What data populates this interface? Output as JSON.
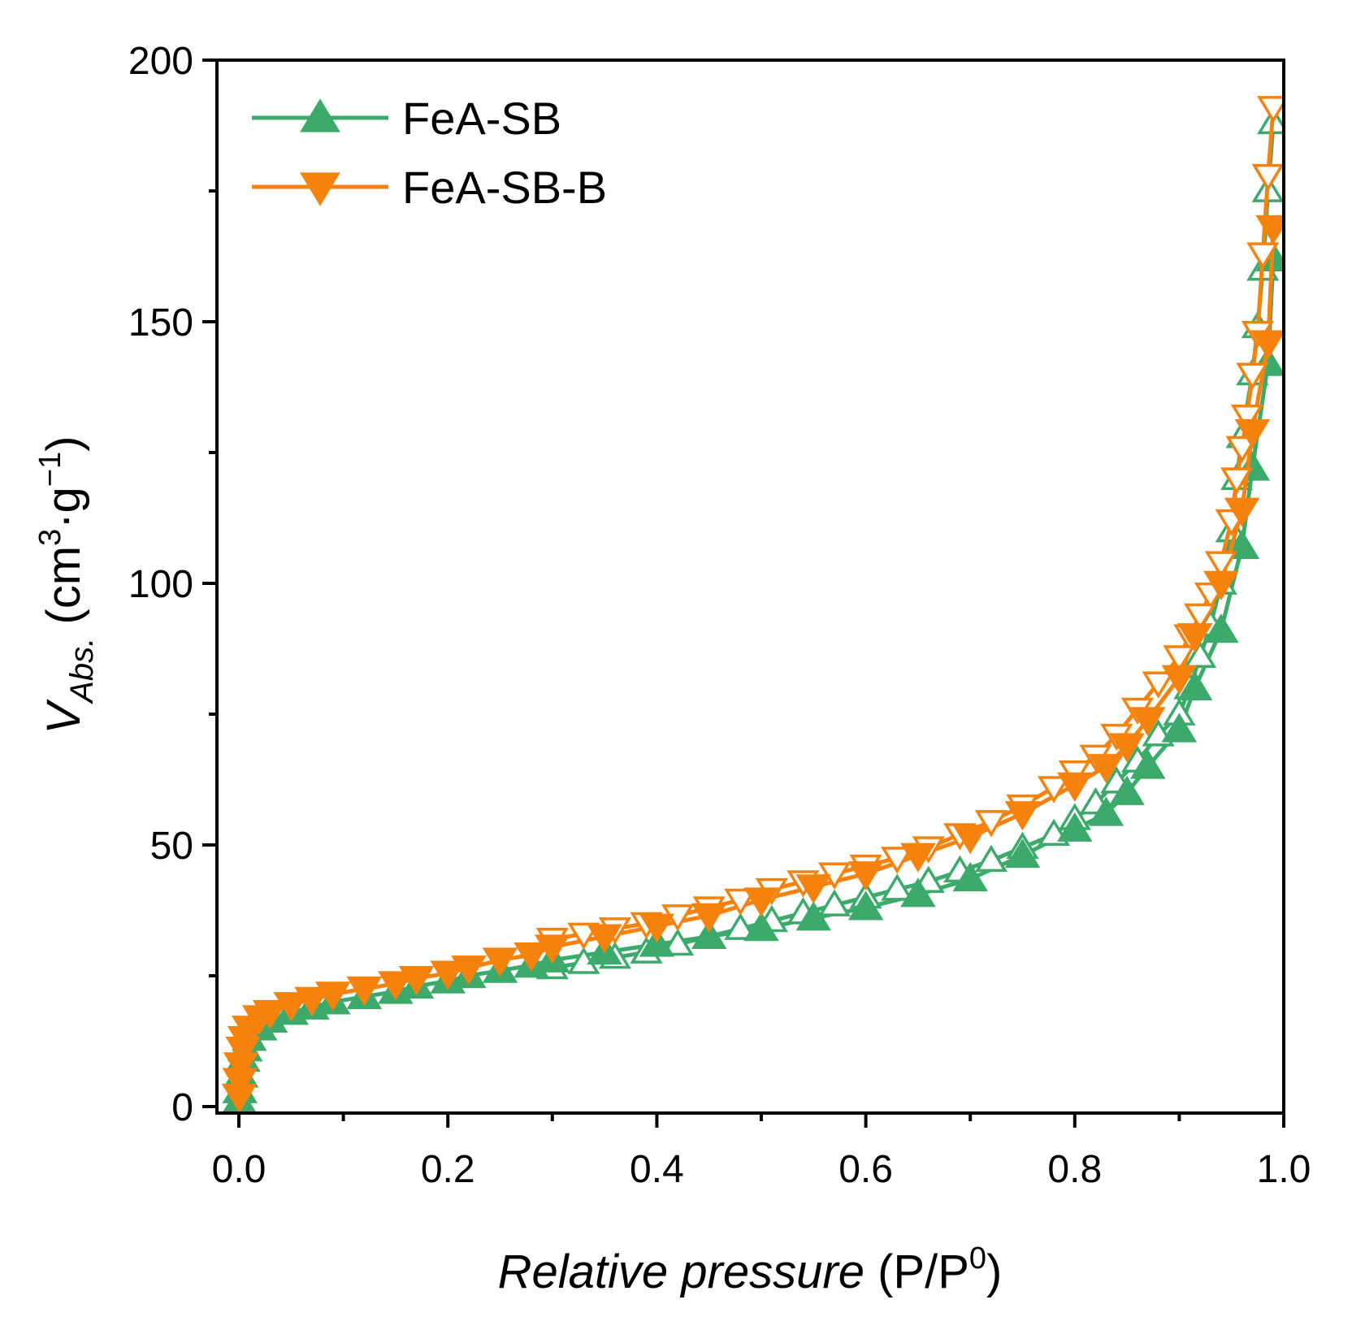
{
  "chart_data": {
    "type": "line",
    "title": "",
    "xlabel": {
      "italic": "Relative pressure",
      "unit_prefix": "(P/P",
      "unit_sup": "0",
      "unit_suffix": ")"
    },
    "ylabel": {
      "main": "V",
      "sub": "Abs.",
      "unit_prefix": "(cm",
      "sup1": "3",
      "unit_mid": "·g",
      "sup2": "−1",
      "unit_suffix": ")"
    },
    "xlim": [
      0.0,
      1.0
    ],
    "ylim": [
      0,
      200
    ],
    "xticks": [
      0.0,
      0.2,
      0.4,
      0.6,
      0.8,
      1.0
    ],
    "xtick_labels": [
      "0.0",
      "0.2",
      "0.4",
      "0.6",
      "0.8",
      "1.0"
    ],
    "yticks": [
      0,
      50,
      100,
      150,
      200
    ],
    "ytick_labels": [
      "0",
      "50",
      "100",
      "150",
      "200"
    ],
    "grid": false,
    "legend_position": "top-left",
    "series": [
      {
        "name": "FeA-SB",
        "color": "#3BAA6B",
        "marker": "triangle-up",
        "adsorption": {
          "x": [
            0.0005,
            0.001,
            0.002,
            0.004,
            0.006,
            0.01,
            0.02,
            0.03,
            0.05,
            0.07,
            0.09,
            0.12,
            0.15,
            0.17,
            0.2,
            0.22,
            0.25,
            0.28,
            0.3,
            0.35,
            0.4,
            0.45,
            0.5,
            0.55,
            0.6,
            0.65,
            0.7,
            0.75,
            0.8,
            0.83,
            0.85,
            0.87,
            0.9,
            0.915,
            0.94,
            0.96,
            0.97,
            0.985,
            0.99
          ],
          "y": [
            1,
            3,
            6,
            9,
            11,
            13,
            15,
            16.5,
            18,
            19,
            20,
            21,
            22,
            23,
            24,
            25,
            26,
            27,
            28,
            29.5,
            31,
            32.5,
            34,
            36,
            38,
            40.5,
            43.5,
            48,
            53,
            56,
            60,
            65,
            72,
            80,
            91,
            107,
            122,
            142,
            162
          ]
        },
        "desorption": {
          "x": [
            0.99,
            0.985,
            0.98,
            0.975,
            0.97,
            0.96,
            0.955,
            0.95,
            0.94,
            0.93,
            0.92,
            0.91,
            0.9,
            0.88,
            0.86,
            0.84,
            0.82,
            0.8,
            0.78,
            0.75,
            0.72,
            0.69,
            0.66,
            0.63,
            0.6,
            0.57,
            0.54,
            0.51,
            0.48,
            0.45,
            0.42,
            0.39,
            0.36,
            0.33,
            0.3
          ],
          "y": [
            188,
            175,
            160,
            149,
            140,
            128,
            120,
            110,
            100,
            92,
            86,
            80,
            75,
            71,
            66,
            62,
            58,
            55,
            52,
            49.5,
            47,
            45,
            43,
            41.5,
            40,
            38.5,
            37,
            35.5,
            34,
            32.5,
            31,
            29.5,
            28.5,
            27.5,
            26.5
          ]
        }
      },
      {
        "name": "FeA-SB-B",
        "color": "#F5820D",
        "marker": "triangle-down",
        "adsorption": {
          "x": [
            0.0005,
            0.001,
            0.002,
            0.004,
            0.006,
            0.01,
            0.02,
            0.03,
            0.05,
            0.07,
            0.09,
            0.12,
            0.15,
            0.17,
            0.2,
            0.22,
            0.25,
            0.28,
            0.3,
            0.35,
            0.4,
            0.45,
            0.5,
            0.55,
            0.6,
            0.65,
            0.7,
            0.75,
            0.8,
            0.83,
            0.85,
            0.87,
            0.9,
            0.915,
            0.94,
            0.96,
            0.97,
            0.985,
            0.99
          ],
          "y": [
            2,
            5,
            8,
            11,
            13,
            15,
            17,
            18,
            19.5,
            20.5,
            21.5,
            22.5,
            23.5,
            24.5,
            25.5,
            26.5,
            28,
            29,
            30.5,
            32.5,
            34.5,
            36.5,
            39.5,
            42,
            44.5,
            48,
            51.5,
            56,
            61.5,
            65,
            69,
            74,
            82,
            90,
            100,
            114,
            129,
            146,
            168
          ]
        },
        "desorption": {
          "x": [
            0.99,
            0.985,
            0.98,
            0.975,
            0.97,
            0.965,
            0.96,
            0.955,
            0.95,
            0.94,
            0.93,
            0.92,
            0.91,
            0.9,
            0.88,
            0.86,
            0.84,
            0.82,
            0.8,
            0.78,
            0.75,
            0.72,
            0.69,
            0.66,
            0.63,
            0.6,
            0.57,
            0.54,
            0.51,
            0.48,
            0.45,
            0.42,
            0.39,
            0.36,
            0.33,
            0.3
          ],
          "y": [
            191,
            178,
            163,
            148,
            140,
            132,
            126,
            120,
            112,
            104,
            98,
            94,
            90,
            86,
            81,
            76,
            71,
            67,
            64,
            61,
            57.5,
            54.5,
            52,
            49.5,
            47.5,
            46,
            44.5,
            43,
            41.5,
            39.5,
            38,
            36.5,
            35,
            34,
            33,
            32
          ]
        }
      }
    ]
  }
}
